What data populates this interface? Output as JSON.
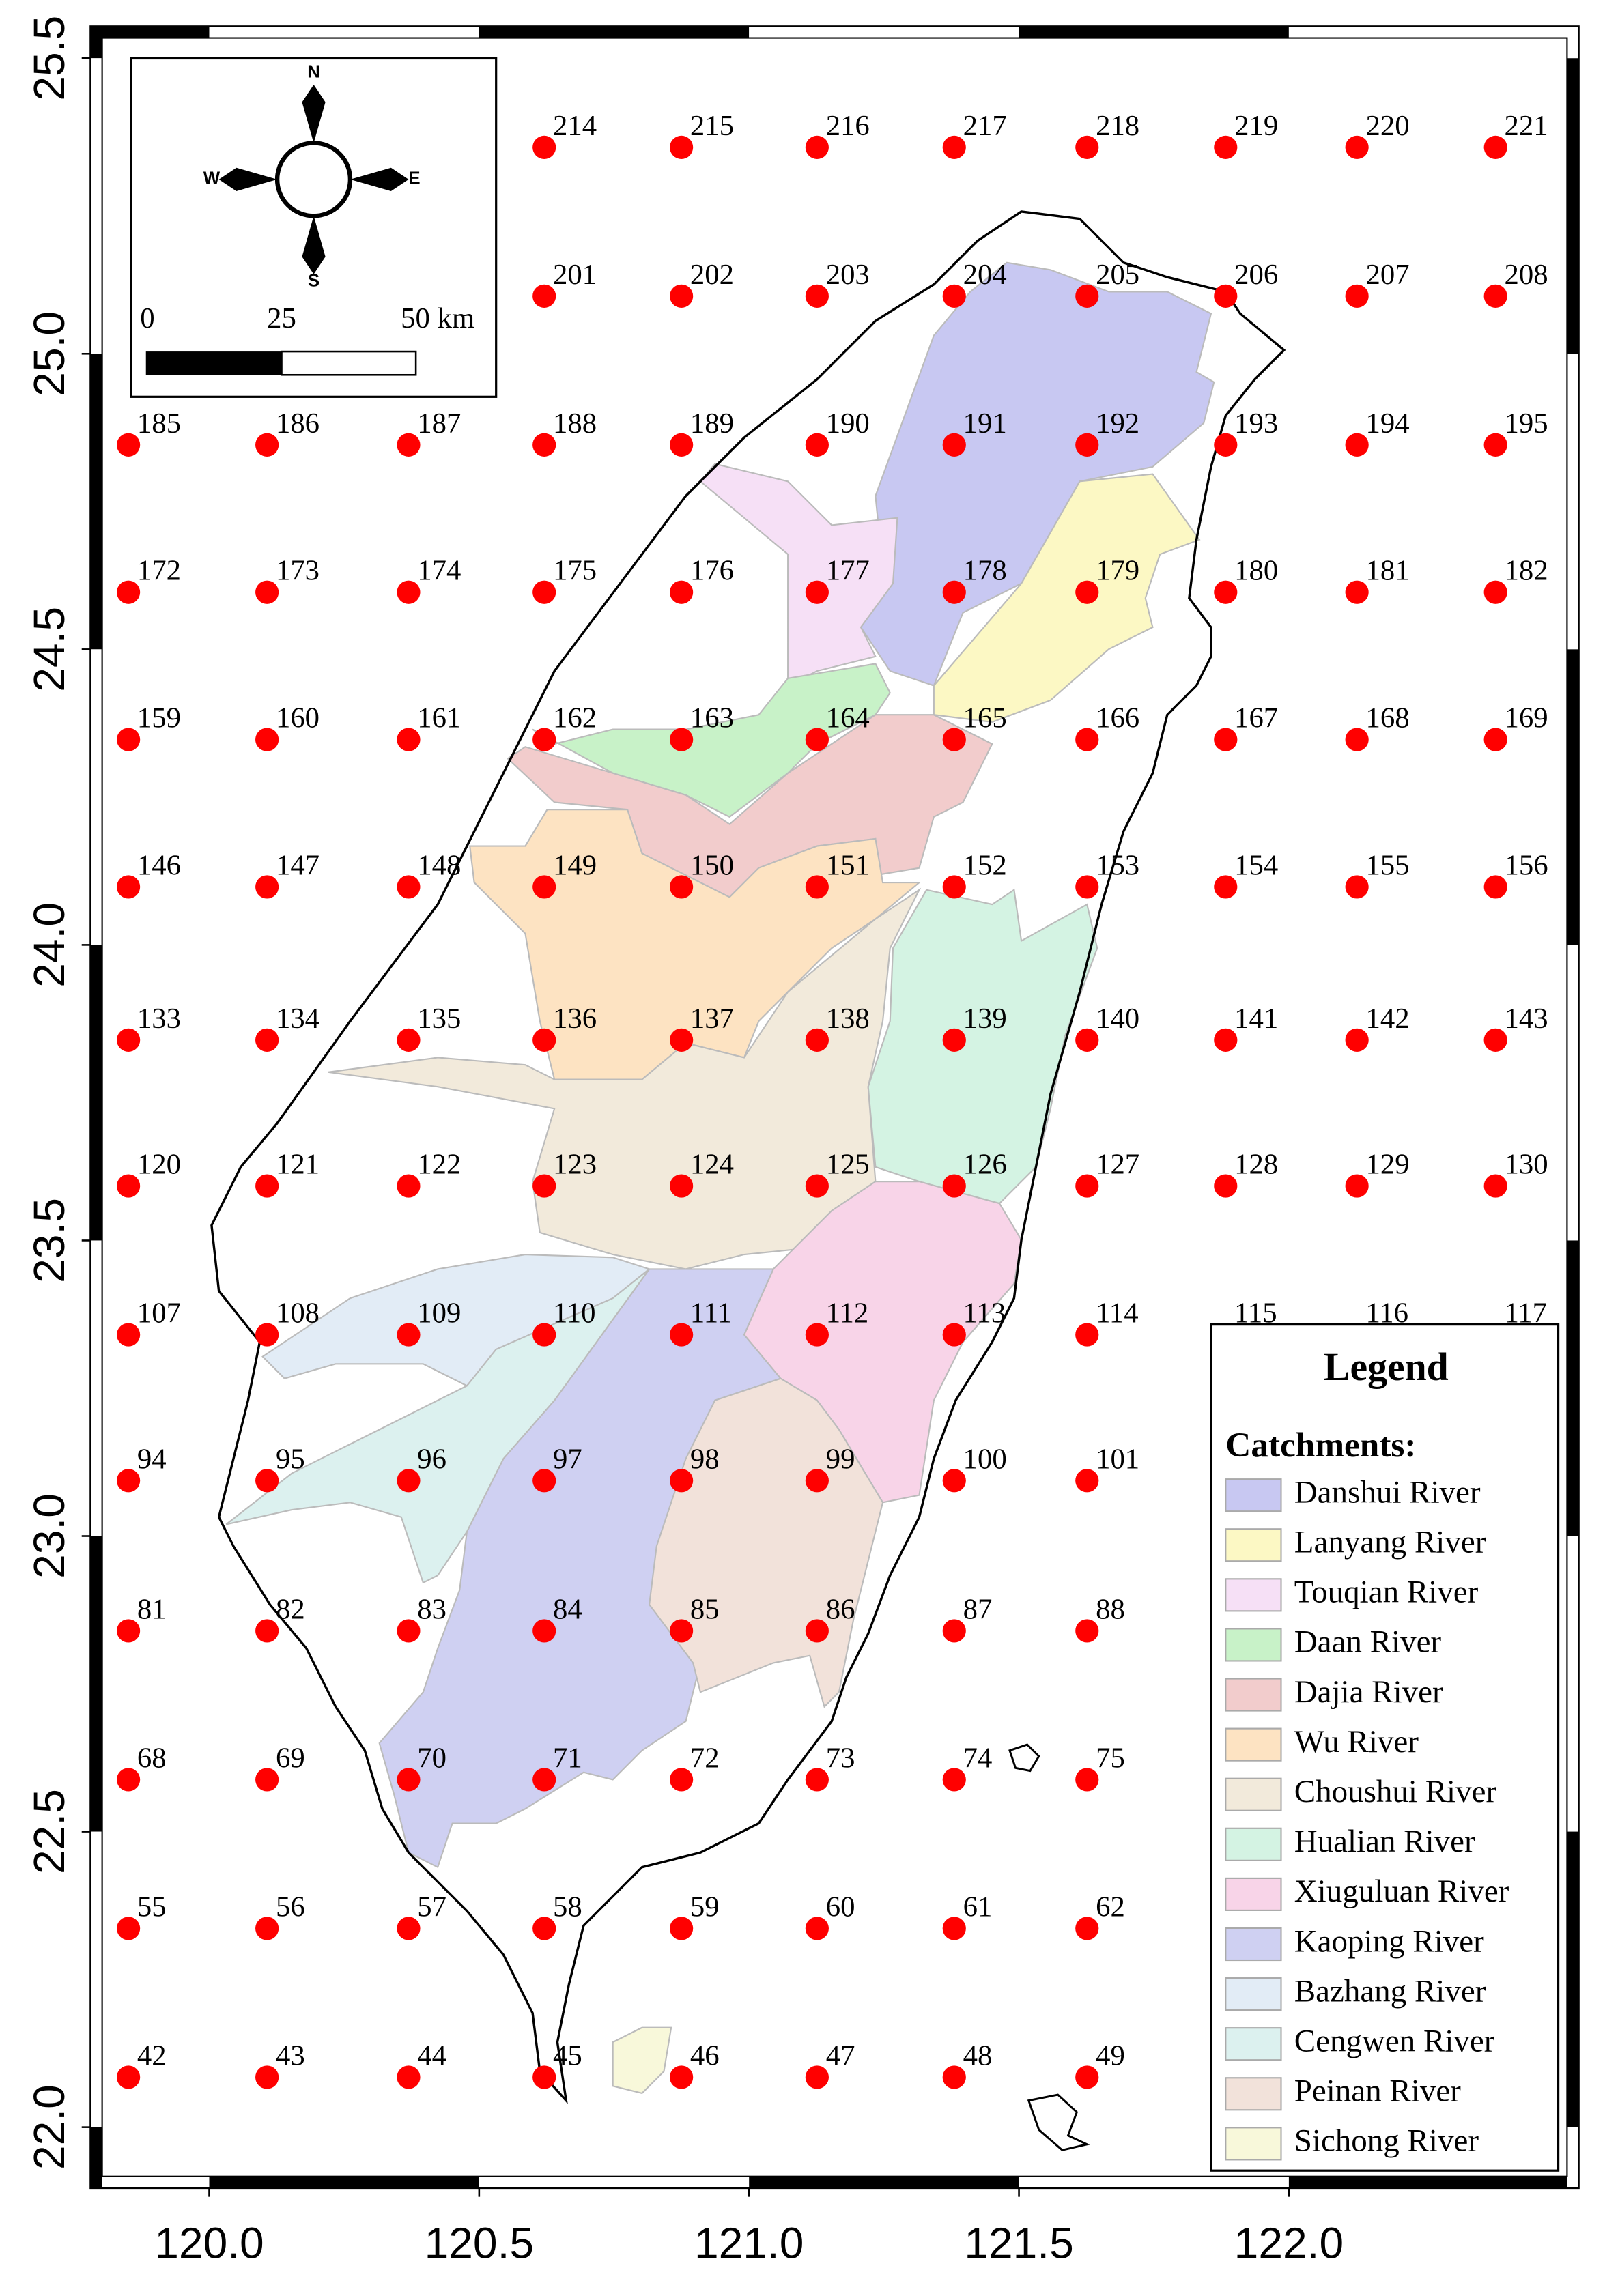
{
  "map": {
    "xaxis": {
      "xlim": [
        119.78,
        122.537
      ],
      "xticks": [
        {
          "value": 120.0,
          "label": "120.0"
        },
        {
          "value": 120.5,
          "label": "120.5"
        },
        {
          "value": 121.0,
          "label": "121.0"
        },
        {
          "value": 121.5,
          "label": "121.5"
        },
        {
          "value": 122.0,
          "label": "122.0"
        }
      ]
    },
    "yaxis": {
      "ylim": [
        21.897,
        25.554
      ],
      "yticks": [
        {
          "value": 22.0,
          "label": "22.0"
        },
        {
          "value": 22.5,
          "label": "22.5"
        },
        {
          "value": 23.0,
          "label": "23.0"
        },
        {
          "value": 23.5,
          "label": "23.5"
        },
        {
          "value": 24.0,
          "label": "24.0"
        },
        {
          "value": 24.5,
          "label": "24.5"
        },
        {
          "value": 25.0,
          "label": "25.0"
        },
        {
          "value": 25.5,
          "label": "25.5"
        }
      ]
    },
    "compass": {
      "north": "N",
      "south": "S",
      "east": "E",
      "west": "W"
    },
    "scale_bar": {
      "labels": [
        "0",
        "25",
        "50 km"
      ]
    },
    "grid_points": {
      "color": "#ff0000",
      "rows": [
        [
          214,
          215,
          216,
          217,
          218,
          219,
          220,
          221
        ],
        [
          201,
          202,
          203,
          204,
          205,
          206,
          207,
          208
        ],
        [
          185,
          186,
          187,
          188,
          189,
          190,
          191,
          192,
          193,
          194,
          195
        ],
        [
          172,
          173,
          174,
          175,
          176,
          177,
          178,
          179,
          180,
          181,
          182
        ],
        [
          159,
          160,
          161,
          162,
          163,
          164,
          165,
          166,
          167,
          168,
          169
        ],
        [
          146,
          147,
          148,
          149,
          150,
          151,
          152,
          153,
          154,
          155,
          156
        ],
        [
          133,
          134,
          135,
          136,
          137,
          138,
          139,
          140,
          141,
          142,
          143
        ],
        [
          120,
          121,
          122,
          123,
          124,
          125,
          126,
          127,
          128,
          129,
          130
        ],
        [
          107,
          108,
          109,
          110,
          111,
          112,
          113,
          114,
          115,
          116,
          117
        ],
        [
          94,
          95,
          96,
          97,
          98,
          99,
          100,
          101
        ],
        [
          81,
          82,
          83,
          84,
          85,
          86,
          87,
          88
        ],
        [
          68,
          69,
          70,
          71,
          72,
          73,
          74,
          75
        ],
        [
          55,
          56,
          57,
          58,
          59,
          60,
          61,
          62
        ],
        [
          42,
          43,
          44,
          45,
          46,
          47,
          48,
          49
        ]
      ]
    },
    "legend": {
      "title": "Legend",
      "subtitle": "Catchments:",
      "entries": [
        {
          "name": "Danshui River",
          "color": "#c8c8f2"
        },
        {
          "name": "Lanyang River",
          "color": "#fcf8c4"
        },
        {
          "name": "Touqian River",
          "color": "#f6e0f6"
        },
        {
          "name": "Daan River",
          "color": "#c8f2c8"
        },
        {
          "name": "Dajia River",
          "color": "#f2cccc"
        },
        {
          "name": "Wu River",
          "color": "#fde3c2"
        },
        {
          "name": "Choushui River",
          "color": "#f2eadb"
        },
        {
          "name": "Hualian River",
          "color": "#d4f3e3"
        },
        {
          "name": "Xiuguluan River",
          "color": "#f8d4e8"
        },
        {
          "name": "Kaoping River",
          "color": "#cfd0f2"
        },
        {
          "name": "Bazhang River",
          "color": "#e2ecf6"
        },
        {
          "name": "Cengwen River",
          "color": "#dcf1ef"
        },
        {
          "name": "Peinan River",
          "color": "#f2e2da"
        },
        {
          "name": "Sichong River",
          "color": "#f8f8da"
        }
      ]
    }
  }
}
